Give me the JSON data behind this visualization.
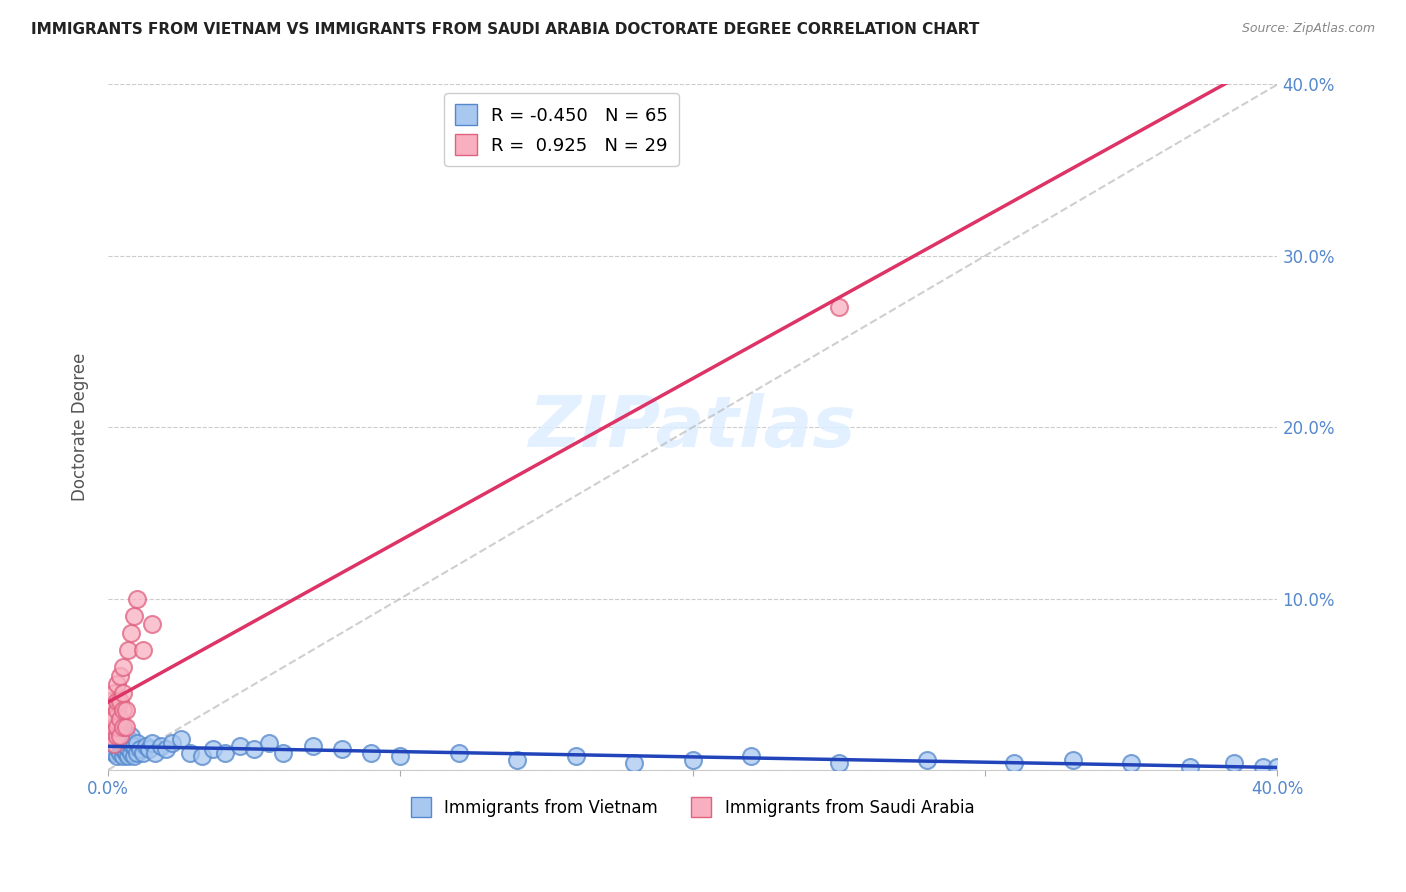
{
  "title": "IMMIGRANTS FROM VIETNAM VS IMMIGRANTS FROM SAUDI ARABIA DOCTORATE DEGREE CORRELATION CHART",
  "source": "Source: ZipAtlas.com",
  "ylabel": "Doctorate Degree",
  "xlim": [
    0.0,
    0.4
  ],
  "ylim": [
    0.0,
    0.4
  ],
  "xticks": [
    0.0,
    0.1,
    0.2,
    0.3,
    0.4
  ],
  "yticks": [
    0.0,
    0.1,
    0.2,
    0.3,
    0.4
  ],
  "xtick_labels_show": [
    "0.0%",
    "40.0%"
  ],
  "xtick_labels_pos": [
    0.0,
    0.4
  ],
  "ytick_labels": [
    "",
    "10.0%",
    "20.0%",
    "30.0%",
    "40.0%"
  ],
  "vietnam_color": "#a8c8f0",
  "vietnam_edge_color": "#5588cc",
  "saudi_color": "#f8b0c0",
  "saudi_edge_color": "#e06080",
  "trend_vietnam_color": "#2244bb",
  "trend_saudi_color": "#dd3366",
  "R_vietnam": -0.45,
  "N_vietnam": 65,
  "R_saudi": 0.925,
  "N_saudi": 29,
  "legend_label_vietnam": "Immigrants from Vietnam",
  "legend_label_saudi": "Immigrants from Saudi Arabia",
  "vietnam_x": [
    0.001,
    0.001,
    0.002,
    0.002,
    0.002,
    0.003,
    0.003,
    0.003,
    0.004,
    0.004,
    0.004,
    0.005,
    0.005,
    0.005,
    0.005,
    0.006,
    0.006,
    0.006,
    0.007,
    0.007,
    0.007,
    0.008,
    0.008,
    0.008,
    0.009,
    0.009,
    0.01,
    0.01,
    0.011,
    0.012,
    0.013,
    0.014,
    0.015,
    0.016,
    0.018,
    0.02,
    0.022,
    0.025,
    0.028,
    0.032,
    0.036,
    0.04,
    0.045,
    0.05,
    0.055,
    0.06,
    0.07,
    0.08,
    0.09,
    0.1,
    0.12,
    0.14,
    0.16,
    0.18,
    0.2,
    0.22,
    0.25,
    0.28,
    0.31,
    0.33,
    0.35,
    0.37,
    0.385,
    0.395,
    0.4
  ],
  "vietnam_y": [
    0.012,
    0.018,
    0.01,
    0.015,
    0.02,
    0.008,
    0.013,
    0.018,
    0.01,
    0.015,
    0.022,
    0.008,
    0.012,
    0.016,
    0.022,
    0.01,
    0.014,
    0.02,
    0.008,
    0.013,
    0.018,
    0.01,
    0.015,
    0.02,
    0.008,
    0.014,
    0.01,
    0.016,
    0.012,
    0.01,
    0.014,
    0.012,
    0.016,
    0.01,
    0.014,
    0.012,
    0.016,
    0.018,
    0.01,
    0.008,
    0.012,
    0.01,
    0.014,
    0.012,
    0.016,
    0.01,
    0.014,
    0.012,
    0.01,
    0.008,
    0.01,
    0.006,
    0.008,
    0.004,
    0.006,
    0.008,
    0.004,
    0.006,
    0.004,
    0.006,
    0.004,
    0.002,
    0.004,
    0.002,
    0.002
  ],
  "saudi_x": [
    0.001,
    0.001,
    0.001,
    0.002,
    0.002,
    0.002,
    0.002,
    0.003,
    0.003,
    0.003,
    0.003,
    0.003,
    0.004,
    0.004,
    0.004,
    0.004,
    0.005,
    0.005,
    0.005,
    0.005,
    0.006,
    0.006,
    0.007,
    0.008,
    0.009,
    0.01,
    0.012,
    0.015,
    0.25
  ],
  "saudi_y": [
    0.02,
    0.03,
    0.04,
    0.015,
    0.025,
    0.03,
    0.045,
    0.02,
    0.025,
    0.035,
    0.04,
    0.05,
    0.02,
    0.03,
    0.04,
    0.055,
    0.025,
    0.035,
    0.045,
    0.06,
    0.025,
    0.035,
    0.07,
    0.08,
    0.09,
    0.1,
    0.07,
    0.085,
    0.27
  ],
  "background_color": "#ffffff",
  "grid_color": "#cccccc",
  "title_fontsize": 11,
  "source_fontsize": 9,
  "axis_label_color": "#555555",
  "tick_color_blue": "#5588cc",
  "watermark_color": "#ddeeff"
}
